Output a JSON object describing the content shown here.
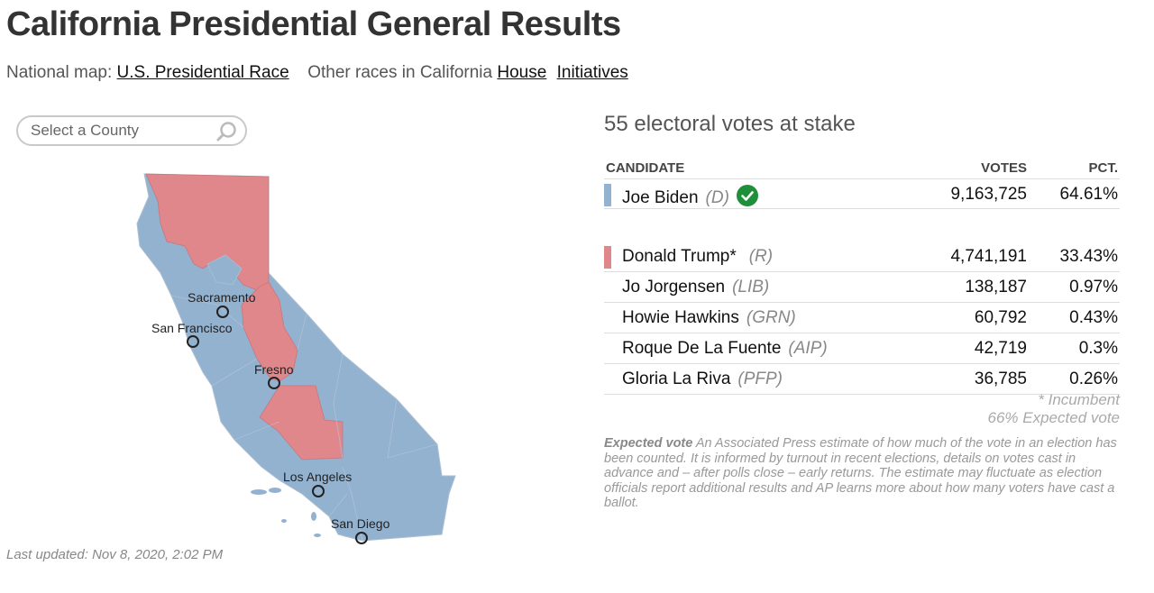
{
  "page": {
    "title": "California Presidential General Results",
    "subnav": {
      "national_label": "National map:",
      "national_link": "U.S. Presidential Race",
      "other_label": "Other races in California",
      "house_link": "House",
      "initiatives_link": "Initiatives"
    },
    "search": {
      "placeholder": "Select a County",
      "icon": "search-icon"
    },
    "map": {
      "cities": [
        "Sacramento",
        "San Francisco",
        "Fresno",
        "Los Angeles",
        "San Diego"
      ],
      "colors": {
        "dem": "#92b2d0",
        "rep": "#e0878c"
      }
    },
    "last_updated": "Last updated: Nov 8, 2020, 2:02 PM"
  },
  "results": {
    "stake": "55 electoral votes at stake",
    "headers": {
      "candidate": "CANDIDATE",
      "votes": "VOTES",
      "pct": "PCT."
    },
    "candidates": [
      {
        "name": "Joe Biden",
        "party": "(D)",
        "votes": "9,163,725",
        "pct": "64.61%",
        "color": "#92b2d0",
        "winner": true
      },
      {
        "name": "Donald Trump*",
        "party": "(R)",
        "votes": "4,741,191",
        "pct": "33.43%",
        "color": "#e0878c"
      },
      {
        "name": "Jo Jorgensen",
        "party": "(LIB)",
        "votes": "138,187",
        "pct": "0.97%"
      },
      {
        "name": "Howie Hawkins",
        "party": "(GRN)",
        "votes": "60,792",
        "pct": "0.43%"
      },
      {
        "name": "Roque De La Fuente",
        "party": "(AIP)",
        "votes": "42,719",
        "pct": "0.3%"
      },
      {
        "name": "Gloria La Riva",
        "party": "(PFP)",
        "votes": "36,785",
        "pct": "0.26%"
      }
    ],
    "incumbent_note": "* Incumbent",
    "expected_vote": "66% Expected vote",
    "explainer_label": "Expected vote",
    "explainer_text": "An Associated Press estimate of how much of the vote in an election has been counted. It is informed by turnout in recent elections, details on votes cast in advance and – after polls close – early returns. The estimate may fluctuate as election officials report additional results and AP learns more about how many voters have cast a ballot."
  }
}
